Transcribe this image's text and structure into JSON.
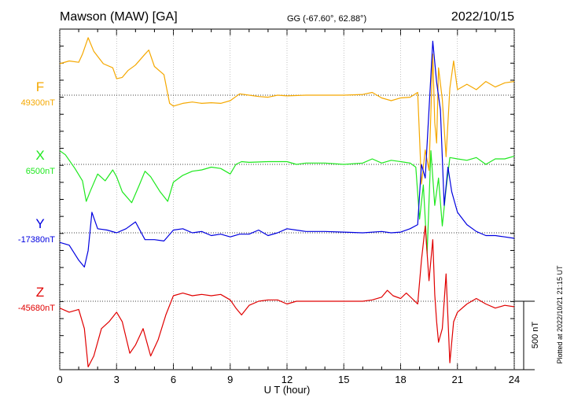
{
  "header": {
    "station": "Mawson (MAW)  [GA]",
    "coords": "GG (-67.60°,  62.88°)",
    "date": "2022/10/15"
  },
  "axis": {
    "xlabel": "U T (hour)",
    "xticks": [
      "0",
      "3",
      "6",
      "9",
      "12",
      "15",
      "18",
      "21",
      "24"
    ]
  },
  "scale_label": "500 nT",
  "footer": "Plotted at 2022/10/21 21:15 UT",
  "chart_data": {
    "type": "line",
    "x_unit": "hour UT",
    "xlim": [
      0,
      24
    ],
    "scale_bar_nT": 500,
    "series": [
      {
        "name": "F",
        "baseline_label": "49300nT",
        "color": "#f5a800",
        "points": [
          [
            0,
            230
          ],
          [
            0.5,
            250
          ],
          [
            1.0,
            240
          ],
          [
            1.2,
            300
          ],
          [
            1.5,
            420
          ],
          [
            1.8,
            320
          ],
          [
            2.3,
            230
          ],
          [
            2.8,
            200
          ],
          [
            3.0,
            120
          ],
          [
            3.3,
            130
          ],
          [
            3.6,
            180
          ],
          [
            4.0,
            220
          ],
          [
            4.5,
            300
          ],
          [
            4.7,
            330
          ],
          [
            5.0,
            210
          ],
          [
            5.5,
            150
          ],
          [
            5.8,
            -60
          ],
          [
            6.0,
            -80
          ],
          [
            6.5,
            -60
          ],
          [
            7.0,
            -50
          ],
          [
            7.5,
            -60
          ],
          [
            8.0,
            -55
          ],
          [
            8.5,
            -60
          ],
          [
            9.0,
            -40
          ],
          [
            9.5,
            10
          ],
          [
            10.0,
            0
          ],
          [
            10.5,
            -10
          ],
          [
            11.0,
            -15
          ],
          [
            11.5,
            0
          ],
          [
            12.0,
            -5
          ],
          [
            13.0,
            0
          ],
          [
            14.0,
            0
          ],
          [
            15.0,
            0
          ],
          [
            16.0,
            5
          ],
          [
            16.5,
            20
          ],
          [
            17.0,
            -20
          ],
          [
            17.5,
            -40
          ],
          [
            18.0,
            -20
          ],
          [
            18.5,
            -15
          ],
          [
            18.9,
            20
          ],
          [
            19.1,
            -650
          ],
          [
            19.3,
            -400
          ],
          [
            19.5,
            -550
          ],
          [
            19.7,
            300
          ],
          [
            19.8,
            -200
          ],
          [
            19.9,
            -350
          ],
          [
            20.0,
            200
          ],
          [
            20.2,
            -30
          ],
          [
            20.4,
            -450
          ],
          [
            20.6,
            50
          ],
          [
            20.8,
            250
          ],
          [
            21.0,
            40
          ],
          [
            21.5,
            80
          ],
          [
            22.0,
            40
          ],
          [
            22.5,
            100
          ],
          [
            23.0,
            60
          ],
          [
            23.5,
            90
          ],
          [
            24.0,
            100
          ]
        ]
      },
      {
        "name": "X",
        "baseline_label": "6500nT",
        "color": "#1ee81e",
        "points": [
          [
            0,
            100
          ],
          [
            0.3,
            70
          ],
          [
            0.8,
            -30
          ],
          [
            1.2,
            -120
          ],
          [
            1.4,
            -270
          ],
          [
            1.6,
            -200
          ],
          [
            2.0,
            -70
          ],
          [
            2.4,
            -120
          ],
          [
            2.8,
            -40
          ],
          [
            3.0,
            -90
          ],
          [
            3.3,
            -200
          ],
          [
            3.8,
            -280
          ],
          [
            4.2,
            -150
          ],
          [
            4.5,
            -50
          ],
          [
            4.8,
            -90
          ],
          [
            5.3,
            -200
          ],
          [
            5.7,
            -270
          ],
          [
            6.0,
            -130
          ],
          [
            6.5,
            -80
          ],
          [
            7.0,
            -50
          ],
          [
            7.5,
            -40
          ],
          [
            8.0,
            -20
          ],
          [
            8.5,
            -30
          ],
          [
            9.0,
            -70
          ],
          [
            9.3,
            0
          ],
          [
            9.6,
            20
          ],
          [
            10.0,
            15
          ],
          [
            11.0,
            20
          ],
          [
            12.0,
            20
          ],
          [
            12.5,
            0
          ],
          [
            13.0,
            10
          ],
          [
            14.0,
            10
          ],
          [
            15.0,
            0
          ],
          [
            16.0,
            10
          ],
          [
            16.5,
            40
          ],
          [
            17.0,
            10
          ],
          [
            17.5,
            30
          ],
          [
            18.0,
            20
          ],
          [
            18.5,
            10
          ],
          [
            18.8,
            -20
          ],
          [
            19.0,
            -400
          ],
          [
            19.2,
            -150
          ],
          [
            19.4,
            -650
          ],
          [
            19.6,
            100
          ],
          [
            19.8,
            -300
          ],
          [
            20.0,
            -100
          ],
          [
            20.2,
            -450
          ],
          [
            20.4,
            -180
          ],
          [
            20.6,
            50
          ],
          [
            21.0,
            40
          ],
          [
            21.5,
            30
          ],
          [
            22.0,
            50
          ],
          [
            22.5,
            0
          ],
          [
            23.0,
            40
          ],
          [
            23.5,
            40
          ],
          [
            24.0,
            60
          ]
        ]
      },
      {
        "name": "Y",
        "baseline_label": "-17380nT",
        "color": "#0000e0",
        "points": [
          [
            0,
            -70
          ],
          [
            0.5,
            -90
          ],
          [
            1.0,
            -200
          ],
          [
            1.3,
            -250
          ],
          [
            1.5,
            -130
          ],
          [
            1.7,
            150
          ],
          [
            2.0,
            30
          ],
          [
            2.5,
            20
          ],
          [
            3.0,
            0
          ],
          [
            3.5,
            30
          ],
          [
            4.0,
            80
          ],
          [
            4.5,
            -50
          ],
          [
            5.0,
            -50
          ],
          [
            5.5,
            -60
          ],
          [
            6.0,
            20
          ],
          [
            6.5,
            30
          ],
          [
            7.0,
            0
          ],
          [
            7.5,
            10
          ],
          [
            8.0,
            -20
          ],
          [
            8.5,
            -10
          ],
          [
            9.0,
            -30
          ],
          [
            9.5,
            -10
          ],
          [
            10.0,
            -10
          ],
          [
            10.5,
            20
          ],
          [
            11.0,
            -20
          ],
          [
            11.5,
            0
          ],
          [
            12.0,
            30
          ],
          [
            13.0,
            10
          ],
          [
            14.0,
            10
          ],
          [
            15.0,
            5
          ],
          [
            16.0,
            0
          ],
          [
            17.0,
            10
          ],
          [
            17.5,
            0
          ],
          [
            18.0,
            5
          ],
          [
            18.5,
            30
          ],
          [
            18.9,
            60
          ],
          [
            19.1,
            500
          ],
          [
            19.3,
            400
          ],
          [
            19.5,
            900
          ],
          [
            19.7,
            1400
          ],
          [
            19.9,
            1100
          ],
          [
            20.1,
            900
          ],
          [
            20.3,
            200
          ],
          [
            20.5,
            480
          ],
          [
            20.7,
            300
          ],
          [
            21.0,
            150
          ],
          [
            21.5,
            60
          ],
          [
            22.0,
            10
          ],
          [
            22.5,
            -20
          ],
          [
            23.0,
            -20
          ],
          [
            23.5,
            -30
          ],
          [
            24.0,
            -40
          ]
        ]
      },
      {
        "name": "Z",
        "baseline_label": "-45680nT",
        "color": "#e00000",
        "points": [
          [
            0,
            -50
          ],
          [
            0.5,
            -80
          ],
          [
            1.0,
            -60
          ],
          [
            1.3,
            -200
          ],
          [
            1.5,
            -480
          ],
          [
            1.8,
            -400
          ],
          [
            2.2,
            -200
          ],
          [
            2.6,
            -150
          ],
          [
            3.0,
            -80
          ],
          [
            3.3,
            -150
          ],
          [
            3.7,
            -380
          ],
          [
            4.0,
            -320
          ],
          [
            4.4,
            -200
          ],
          [
            4.8,
            -400
          ],
          [
            5.2,
            -280
          ],
          [
            5.6,
            -100
          ],
          [
            6.0,
            40
          ],
          [
            6.5,
            60
          ],
          [
            7.0,
            40
          ],
          [
            7.5,
            50
          ],
          [
            8.0,
            40
          ],
          [
            8.5,
            50
          ],
          [
            9.0,
            10
          ],
          [
            9.3,
            -50
          ],
          [
            9.6,
            -100
          ],
          [
            10.0,
            -30
          ],
          [
            10.5,
            0
          ],
          [
            11.0,
            10
          ],
          [
            11.5,
            10
          ],
          [
            12.0,
            -20
          ],
          [
            12.5,
            0
          ],
          [
            13.0,
            0
          ],
          [
            14.0,
            0
          ],
          [
            15.0,
            0
          ],
          [
            16.0,
            0
          ],
          [
            16.5,
            10
          ],
          [
            17.0,
            30
          ],
          [
            17.3,
            80
          ],
          [
            17.6,
            40
          ],
          [
            18.0,
            20
          ],
          [
            18.3,
            60
          ],
          [
            18.6,
            20
          ],
          [
            18.9,
            -20
          ],
          [
            19.1,
            300
          ],
          [
            19.3,
            550
          ],
          [
            19.5,
            150
          ],
          [
            19.7,
            450
          ],
          [
            19.8,
            50
          ],
          [
            19.9,
            -150
          ],
          [
            20.0,
            -300
          ],
          [
            20.2,
            -200
          ],
          [
            20.4,
            200
          ],
          [
            20.6,
            -450
          ],
          [
            20.8,
            -150
          ],
          [
            21.0,
            -80
          ],
          [
            21.5,
            -20
          ],
          [
            22.0,
            20
          ],
          [
            22.5,
            -20
          ],
          [
            23.0,
            -50
          ],
          [
            23.5,
            -30
          ],
          [
            24.0,
            -40
          ]
        ]
      }
    ]
  }
}
